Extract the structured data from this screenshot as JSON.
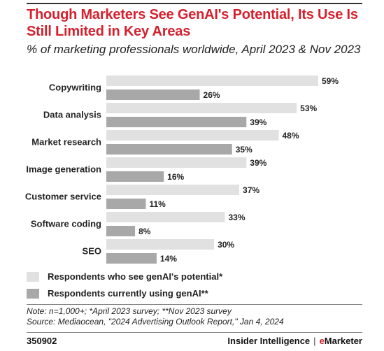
{
  "title": "Though Marketers See GenAI's Potential, Its Use Is Still Limited in Key Areas",
  "subtitle": "% of marketing professionals worldwide, April 2023 & Nov 2023",
  "chart_data": {
    "type": "bar",
    "orientation": "horizontal",
    "categories": [
      "Copywriting",
      "Data analysis",
      "Market research",
      "Image generation",
      "Customer service",
      "Software coding",
      "SEO"
    ],
    "series": [
      {
        "name": "Respondents who see genAI's potential*",
        "values": [
          59,
          53,
          48,
          39,
          37,
          33,
          30
        ],
        "color": "#e1e1e1"
      },
      {
        "name": "Respondents currently using genAI**",
        "values": [
          26,
          39,
          35,
          16,
          11,
          8,
          14
        ],
        "color": "#a8a8a8"
      }
    ],
    "value_suffix": "%",
    "xlim": [
      0,
      59
    ],
    "grid": false,
    "legend_position": "bottom-left"
  },
  "notes": {
    "note": "Note: n=1,000+; *April 2023 survey; **Nov 2023 survey",
    "source": "Source: Mediaocean, \"2024 Advertising Outlook Report,\" Jan 4, 2024"
  },
  "footer": {
    "chart_id": "350902",
    "brand_left": "Insider Intelligence",
    "brand_separator": "|",
    "brand_right_e": "e",
    "brand_right_rest": "Marketer"
  }
}
